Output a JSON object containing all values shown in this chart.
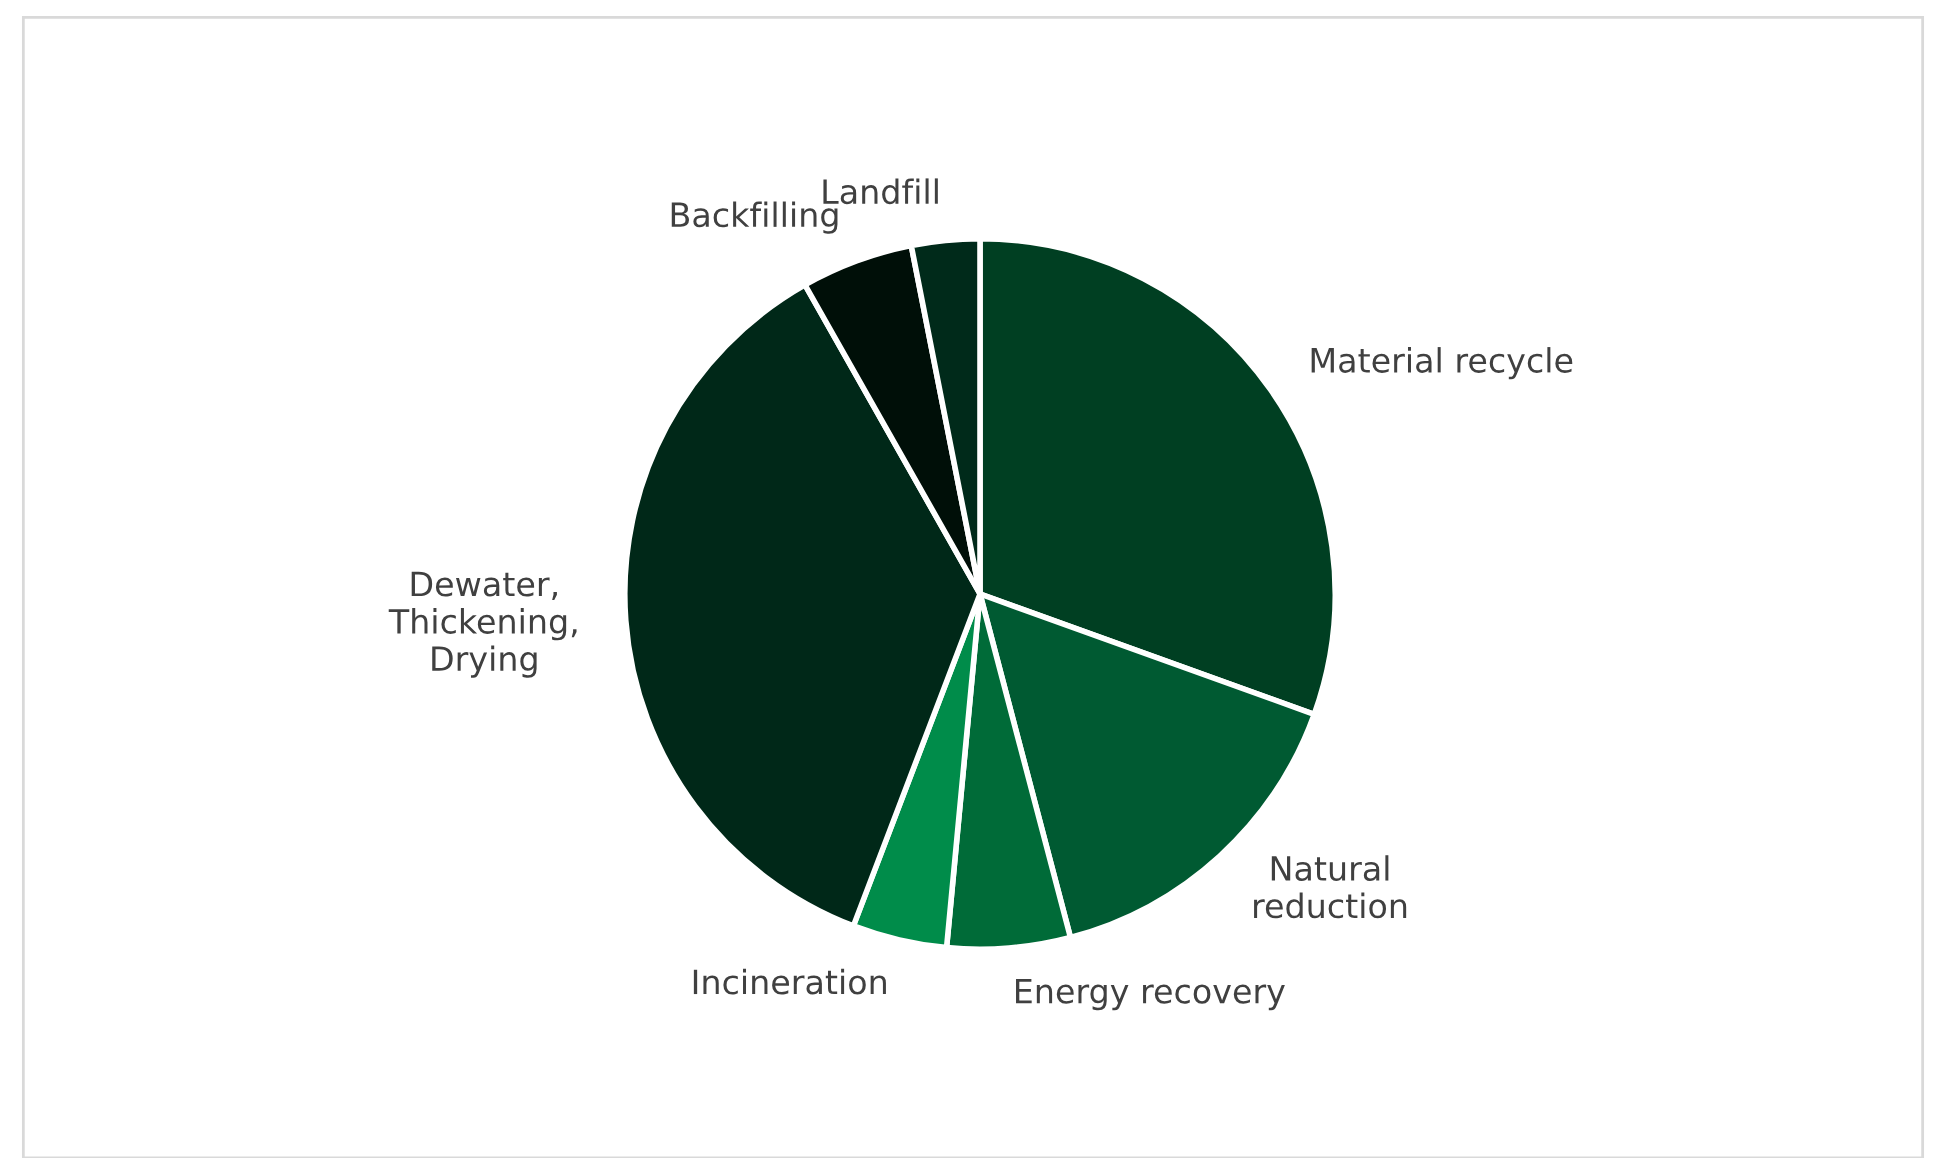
{
  "chart_data": {
    "type": "pie",
    "categories": [
      "Material recycle",
      "Natural\nreduction",
      "Energy recovery",
      "Incineration",
      "Dewater,\nThickening,\nDrying",
      "Backfilling",
      "Landfill"
    ],
    "values": [
      30.5,
      15.4,
      5.6,
      4.3,
      36.0,
      5.1,
      3.1
    ],
    "colors": [
      "#003f22",
      "#005a32",
      "#006b38",
      "#008c4a",
      "#002818",
      "#000f08",
      "#002a1a"
    ],
    "legend": false
  }
}
